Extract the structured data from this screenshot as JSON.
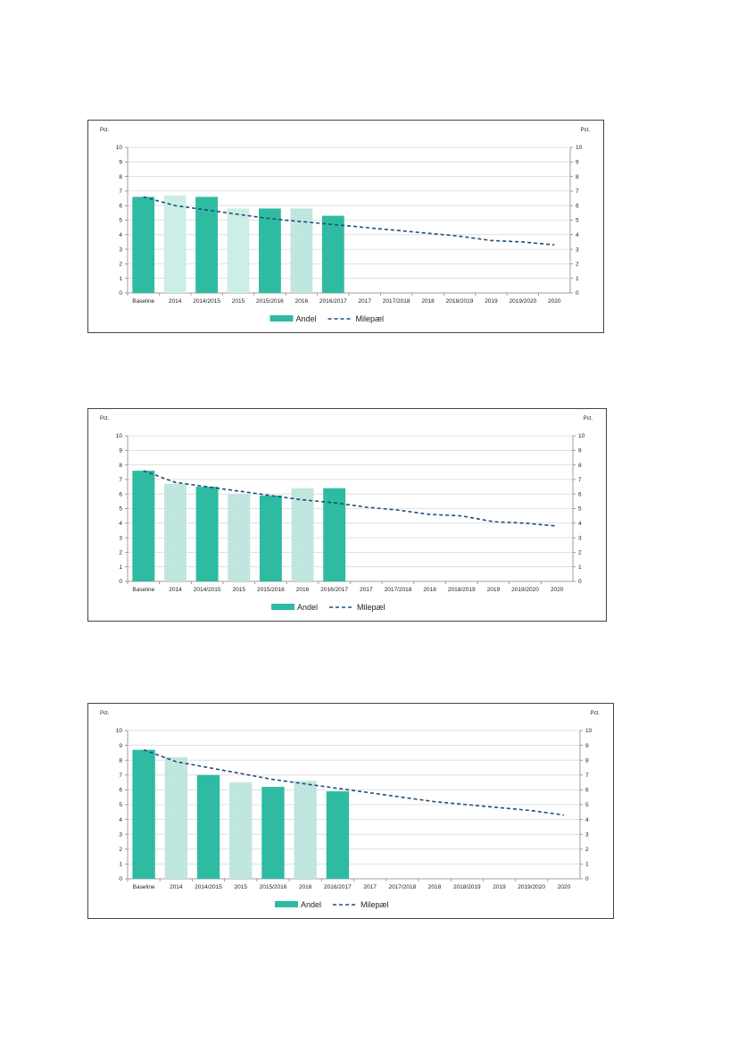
{
  "colors": {
    "andel_solid": "#2EBBA2",
    "andel_light": "#CDEDE7",
    "andel_hatched": "#C5E9E2",
    "milestone_line": "#1F4E79",
    "grid": "#D9D9D9"
  },
  "chart_data": [
    {
      "type": "bar",
      "title": "",
      "y_unit_left": "Pct.",
      "y_unit_right": "Pct.",
      "ylim": [
        0,
        10
      ],
      "yticks": [
        "0",
        "1",
        "2",
        "3",
        "4",
        "5",
        "6",
        "7",
        "8",
        "9",
        "10"
      ],
      "grid": true,
      "legend_position": "bottom",
      "categories": [
        "Baseline",
        "2014",
        "2014/2015",
        "2015",
        "2015/2016",
        "2016",
        "2016/2017",
        "2017",
        "2017/2018",
        "2018",
        "2018/2019",
        "2019",
        "2019/2020",
        "2020"
      ],
      "series": [
        {
          "name": "Andel",
          "type": "bar",
          "values": [
            6.6,
            6.7,
            6.6,
            5.8,
            5.8,
            5.8,
            5.3,
            null,
            null,
            null,
            null,
            null,
            null,
            null
          ],
          "styles": [
            "solid",
            "light",
            "solid",
            "light",
            "solid",
            "hatched",
            "solid",
            "",
            "",
            "",
            "",
            "",
            "",
            ""
          ]
        },
        {
          "name": "Milepæl",
          "type": "line-dashed",
          "values": [
            6.6,
            6.0,
            5.7,
            5.4,
            5.1,
            4.9,
            4.7,
            4.5,
            4.3,
            4.1,
            3.9,
            3.6,
            3.5,
            3.3
          ]
        }
      ]
    },
    {
      "type": "bar",
      "title": "",
      "y_unit_left": "Pct.",
      "y_unit_right": "Pct.",
      "ylim": [
        0,
        10
      ],
      "yticks": [
        "0",
        "1",
        "2",
        "3",
        "4",
        "5",
        "6",
        "7",
        "8",
        "9",
        "10"
      ],
      "grid": true,
      "legend_position": "bottom",
      "categories": [
        "Baseline",
        "2014",
        "2014/2015",
        "2015",
        "2015/2016",
        "2016",
        "2016/2017",
        "2017",
        "2017/2018",
        "2018",
        "2018/2019",
        "2019",
        "2019/2020",
        "2020"
      ],
      "series": [
        {
          "name": "Andel",
          "type": "bar",
          "values": [
            7.6,
            6.7,
            6.5,
            6.0,
            5.9,
            6.4,
            6.4,
            null,
            null,
            null,
            null,
            null,
            null,
            null
          ],
          "styles": [
            "solid",
            "hatched",
            "solid",
            "hatched",
            "solid",
            "hatched",
            "solid",
            "",
            "",
            "",
            "",
            "",
            "",
            ""
          ]
        },
        {
          "name": "Milepæl",
          "type": "line-dashed",
          "values": [
            7.6,
            6.8,
            6.5,
            6.2,
            5.9,
            5.6,
            5.4,
            5.1,
            4.9,
            4.6,
            4.5,
            4.1,
            4.0,
            3.8
          ]
        }
      ]
    },
    {
      "type": "bar",
      "title": "",
      "y_unit_left": "Pct.",
      "y_unit_right": "Pct.",
      "ylim": [
        0,
        10
      ],
      "yticks": [
        "0",
        "1",
        "2",
        "3",
        "4",
        "5",
        "6",
        "7",
        "8",
        "9",
        "10"
      ],
      "grid": true,
      "legend_position": "bottom",
      "categories": [
        "Baseline",
        "2014",
        "2014/2015",
        "2015",
        "2015/2016",
        "2016",
        "2016/2017",
        "2017",
        "2017/2018",
        "2018",
        "2018/2019",
        "2019",
        "2019/2020",
        "2020"
      ],
      "series": [
        {
          "name": "Andel",
          "type": "bar",
          "values": [
            8.7,
            8.2,
            7.0,
            6.5,
            6.2,
            6.6,
            5.9,
            null,
            null,
            null,
            null,
            null,
            null,
            null
          ],
          "styles": [
            "solid",
            "hatched",
            "solid",
            "hatched",
            "solid",
            "hatched",
            "solid",
            "",
            "",
            "",
            "",
            "",
            "",
            ""
          ]
        },
        {
          "name": "Milepæl",
          "type": "line-dashed",
          "values": [
            8.7,
            7.9,
            7.5,
            7.1,
            6.7,
            6.4,
            6.1,
            5.8,
            5.5,
            5.2,
            5.0,
            4.8,
            4.6,
            4.3
          ]
        }
      ]
    }
  ]
}
